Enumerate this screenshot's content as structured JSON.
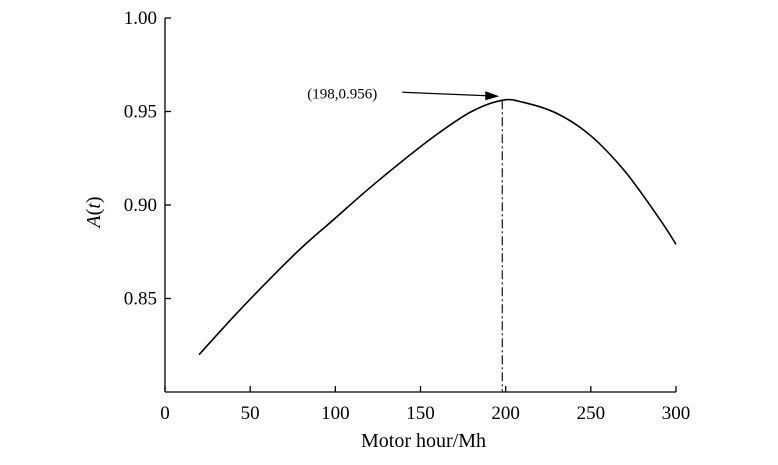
{
  "chart_data": {
    "type": "line",
    "xlabel": "Motor hour/Mh",
    "ylabel_main": "A",
    "ylabel_var": "t",
    "xlim": [
      0,
      300
    ],
    "ylim": [
      0.8,
      1.0
    ],
    "x_ticks": [
      0,
      50,
      100,
      150,
      200,
      250,
      300
    ],
    "x_tick_labels": [
      "0",
      "50",
      "100",
      "150",
      "200",
      "250",
      "300"
    ],
    "y_ticks": [
      0.85,
      0.9,
      0.95,
      1.0
    ],
    "y_tick_labels": [
      "0.85",
      "0.90",
      "0.95",
      "1.00"
    ],
    "grid": false,
    "legend": "none",
    "series": [
      {
        "x": [
          20,
          40,
          60,
          80,
          100,
          120,
          140,
          160,
          180,
          198,
          210,
          230,
          250,
          270,
          290,
          300
        ],
        "y": [
          0.82,
          0.84,
          0.859,
          0.877,
          0.893,
          0.909,
          0.924,
          0.938,
          0.95,
          0.956,
          0.955,
          0.949,
          0.937,
          0.918,
          0.893,
          0.879
        ]
      }
    ],
    "vline": {
      "x": 198,
      "y": 0.956
    },
    "annotation": {
      "text": "(198,0.956)",
      "x": 198,
      "y": 0.956
    }
  }
}
